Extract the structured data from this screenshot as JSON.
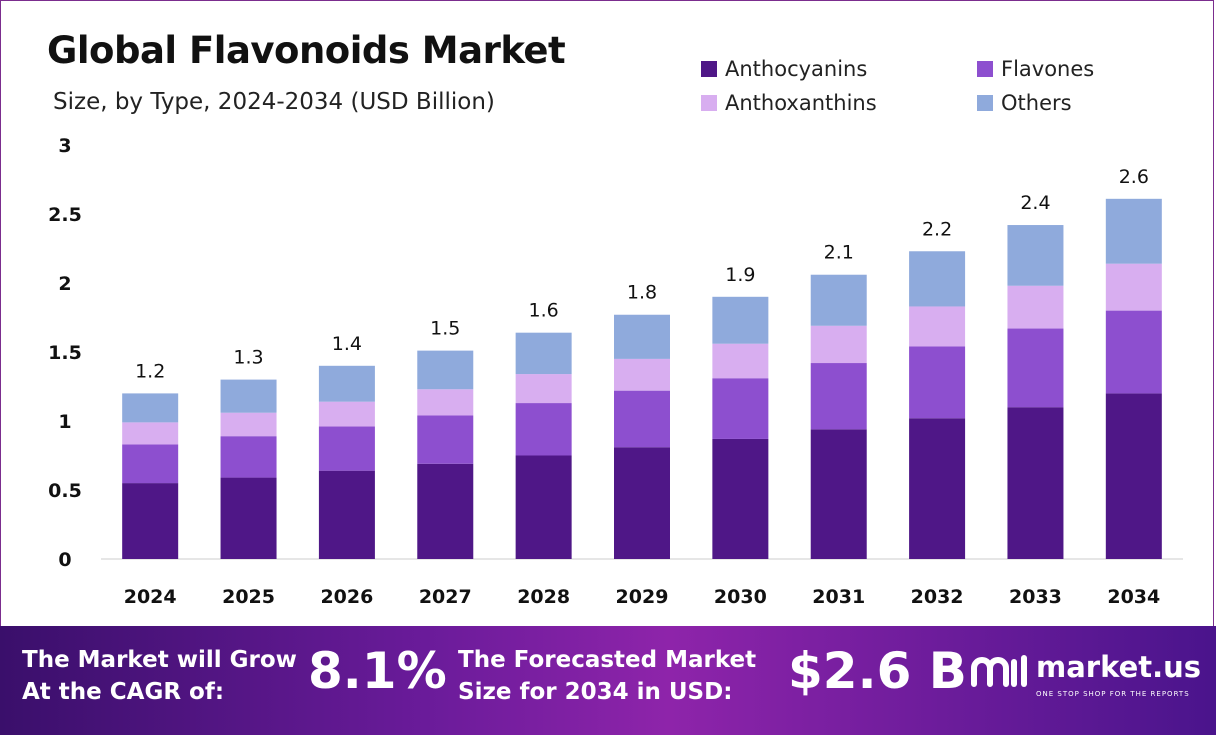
{
  "title": "Global Flavonoids Market",
  "subtitle": "Size, by Type, 2024-2034 (USD Billion)",
  "colors": {
    "anthocyanins": "#4f1787",
    "flavones": "#8d4fcf",
    "anthoxanthins": "#d8aef0",
    "others": "#8faadc"
  },
  "chart_data": {
    "type": "bar",
    "stacked": true,
    "categories": [
      "2024",
      "2025",
      "2026",
      "2027",
      "2028",
      "2029",
      "2030",
      "2031",
      "2032",
      "2033",
      "2034"
    ],
    "series": [
      {
        "name": "Anthocyanins",
        "values": [
          0.55,
          0.59,
          0.64,
          0.69,
          0.75,
          0.81,
          0.87,
          0.94,
          1.02,
          1.1,
          1.2
        ]
      },
      {
        "name": "Flavones",
        "values": [
          0.28,
          0.3,
          0.32,
          0.35,
          0.38,
          0.41,
          0.44,
          0.48,
          0.52,
          0.57,
          0.6
        ]
      },
      {
        "name": "Anthoxanthins",
        "values": [
          0.16,
          0.17,
          0.18,
          0.19,
          0.21,
          0.23,
          0.25,
          0.27,
          0.29,
          0.31,
          0.34
        ]
      },
      {
        "name": "Others",
        "values": [
          0.21,
          0.24,
          0.26,
          0.28,
          0.3,
          0.32,
          0.34,
          0.37,
          0.4,
          0.44,
          0.47
        ]
      }
    ],
    "totals": [
      "1.2",
      "1.3",
      "1.4",
      "1.5",
      "1.6",
      "1.8",
      "1.9",
      "2.1",
      "2.2",
      "2.4",
      "2.6"
    ],
    "yticks": [
      "0",
      "0.5",
      "1",
      "1.5",
      "2",
      "2.5",
      "3"
    ],
    "ylim": [
      0,
      3
    ],
    "grid": false,
    "legend_position": "top-right"
  },
  "banner": {
    "cagr_label_line1": "The Market will Grow",
    "cagr_label_line2": "At the CAGR of:",
    "cagr_value": "8.1%",
    "forecast_label_line1": "The Forecasted Market",
    "forecast_label_line2": "Size for 2034 in USD:",
    "forecast_value": "$2.6 B"
  },
  "brand": {
    "name": "market.us",
    "tagline": "ONE STOP SHOP FOR THE REPORTS",
    "icon": "market-us-logo-icon"
  }
}
